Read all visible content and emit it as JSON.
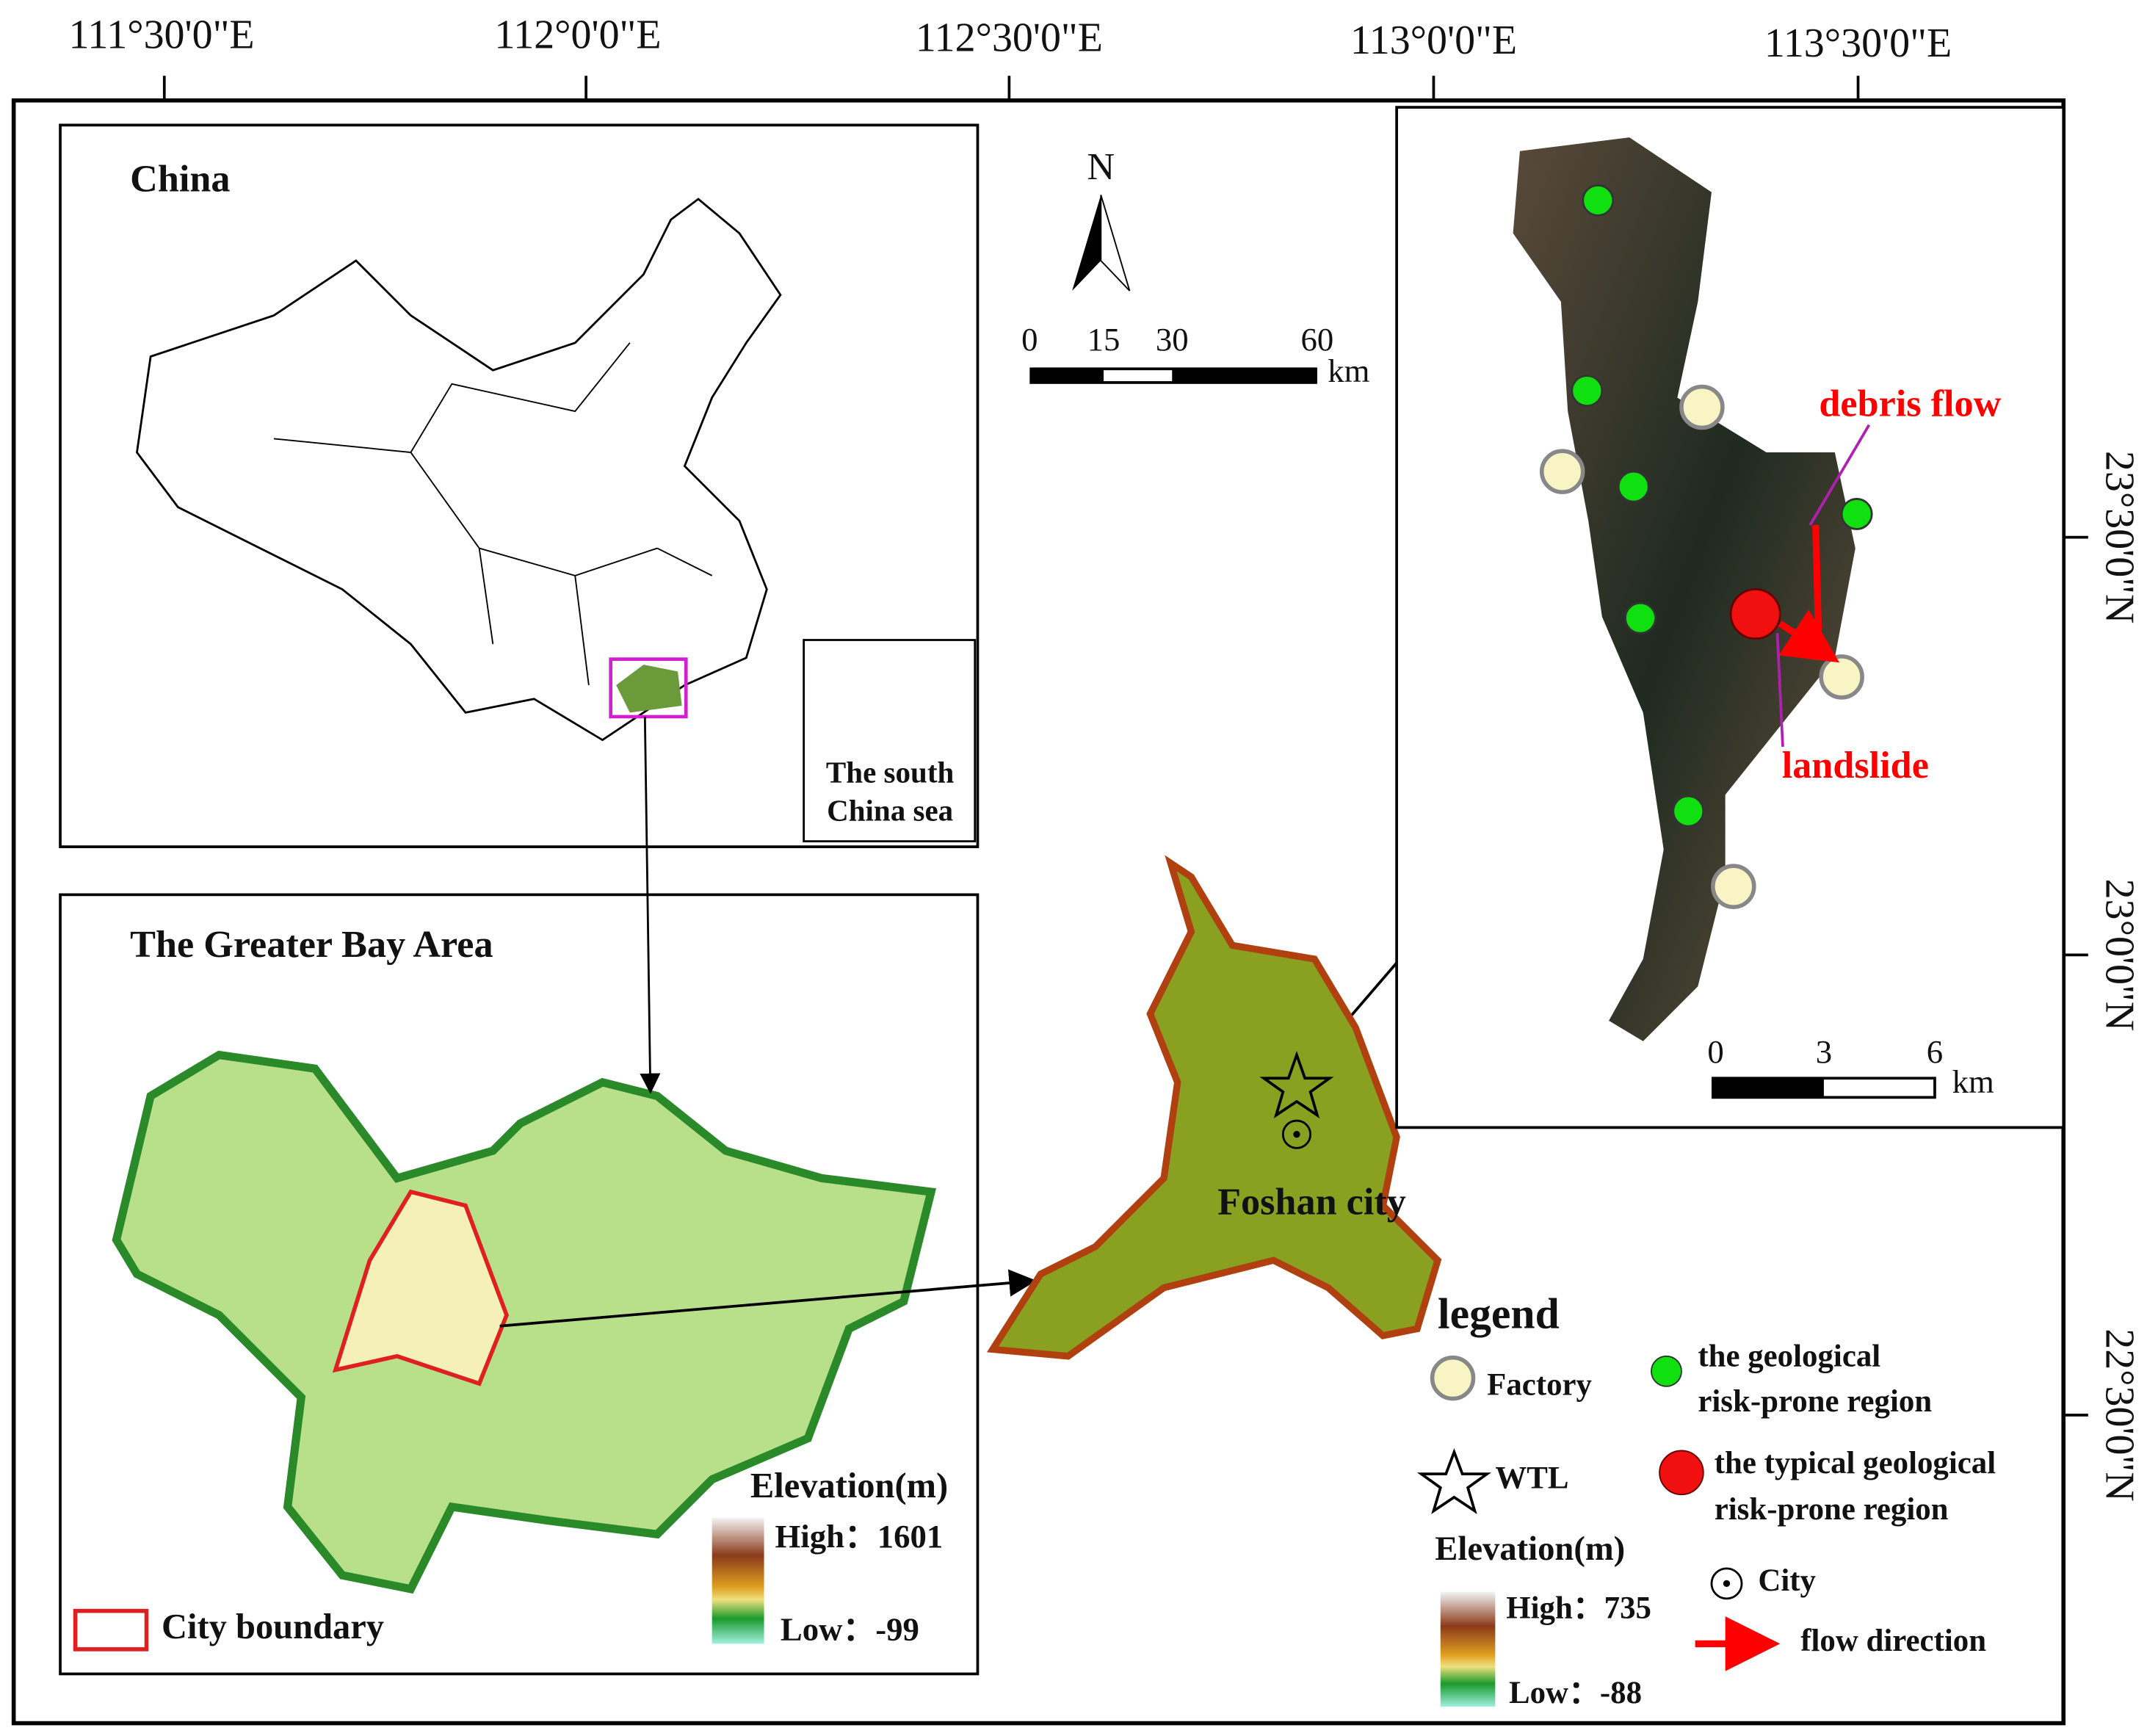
{
  "top_ticks": [
    "111°30'0\"E",
    "112°0'0\"E",
    "112°30'0\"E",
    "113°0'0\"E",
    "113°30'0\"E"
  ],
  "right_ticks": [
    "23°30'0\"N",
    "23°0'0\"N",
    "22°30'0\"N"
  ],
  "china_inset": {
    "title": "China",
    "sea_label": [
      "The south",
      "China sea"
    ]
  },
  "gba_inset": {
    "title": "The Greater Bay Area",
    "elevation_title": "Elevation(m)",
    "high": "High：1601",
    "low": "Low：-99",
    "city_boundary": "City boundary"
  },
  "north_arrow": "N",
  "scale_bar": {
    "labels": [
      "0",
      "15",
      "30",
      "60"
    ],
    "unit": "km"
  },
  "foshan": {
    "label": "Foshan city"
  },
  "detail_inset": {
    "debris_flow": "debris flow",
    "landslide": "landslide",
    "scale_labels": [
      "0",
      "3",
      "6"
    ],
    "unit": "km"
  },
  "legend": {
    "title": "legend",
    "factory": "Factory",
    "geological": [
      "the geological",
      "risk-prone region"
    ],
    "wtl": "WTL",
    "typical": [
      "the typical geological",
      "risk-prone region"
    ],
    "city": "City",
    "flow": "flow direction",
    "elevation_title": "Elevation(m)",
    "high": "High：735",
    "low": "Low：-88"
  }
}
